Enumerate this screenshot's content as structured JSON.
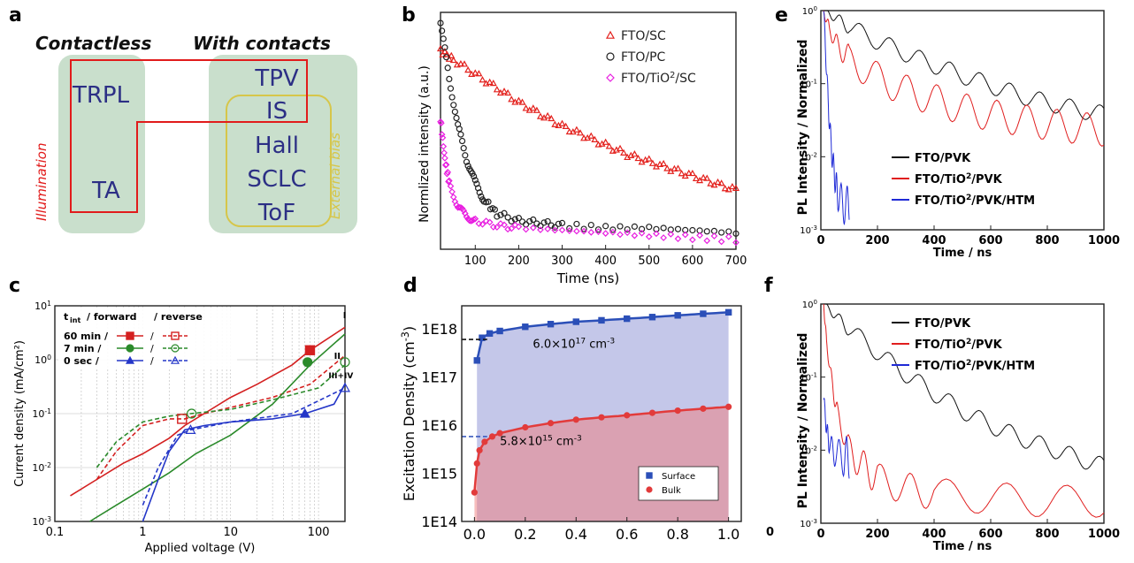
{
  "panels": {
    "a": {
      "label": "a",
      "contactless": "Contactless",
      "with_contacts": "With contacts",
      "illumination": "Illumination",
      "external_bias": "External bias",
      "items_left": [
        "TRPL",
        "TA"
      ],
      "items_right": [
        "TPV",
        "IS",
        "Hall",
        "SCLC",
        "ToF"
      ],
      "colors": {
        "box": "#c9dfcc",
        "text": "#2c2f85",
        "illum": "#e11b1b",
        "bias": "#d6c64a"
      }
    },
    "b": {
      "label": "b"
    },
    "c": {
      "label": "c",
      "legend_header": [
        "t",
        "int",
        "/ forward",
        "/ reverse"
      ],
      "legend_rows": [
        "60 min /",
        "7 min /",
        "0 sec /"
      ],
      "slash": "/",
      "region_labels": [
        "I",
        "II",
        "III+IV"
      ]
    },
    "d": {
      "label": "d",
      "annot_surface": "6.0×10",
      "annot_surface_exp": "17",
      "annot_unit": " cm",
      "annot_unit_exp": "-3",
      "annot_bulk": "5.8×10",
      "annot_bulk_exp": "15"
    },
    "e": {
      "label": "e"
    },
    "f": {
      "label": "f",
      "corner_zero": "0"
    }
  },
  "chart_data": [
    {
      "id": "b",
      "type": "scatter",
      "xlabel": "Time (ns)",
      "ylabel": "Normlized intensity (a.u.)",
      "xlim": [
        20,
        700
      ],
      "ylim": [
        0,
        1
      ],
      "xticks": [
        100,
        200,
        300,
        400,
        500,
        600,
        700
      ],
      "legend_position": "top-right",
      "series": [
        {
          "name": "FTO/SC",
          "legend": [
            "FTO/SC"
          ],
          "color": "#e3201c",
          "marker": "triangle",
          "x": [
            20,
            50,
            100,
            150,
            200,
            250,
            300,
            350,
            400,
            450,
            500,
            550,
            600,
            650,
            700
          ],
          "y": [
            0.84,
            0.8,
            0.74,
            0.68,
            0.62,
            0.57,
            0.52,
            0.48,
            0.44,
            0.4,
            0.37,
            0.34,
            0.31,
            0.28,
            0.25
          ]
        },
        {
          "name": "FTO/PC",
          "legend": [
            "FTO/PC"
          ],
          "color": "#222222",
          "marker": "circle",
          "x": [
            20,
            40,
            60,
            80,
            100,
            120,
            150,
            200,
            250,
            300,
            400,
            500,
            600,
            700
          ],
          "y": [
            0.96,
            0.72,
            0.52,
            0.38,
            0.28,
            0.21,
            0.15,
            0.12,
            0.11,
            0.1,
            0.09,
            0.09,
            0.08,
            0.07
          ]
        },
        {
          "name": "FTO/TiO2/SC",
          "legend": [
            "FTO/TiO",
            "2",
            "/SC"
          ],
          "color": "#e81ee0",
          "marker": "diamond",
          "x": [
            20,
            30,
            40,
            60,
            80,
            100,
            150,
            200,
            300,
            400,
            500,
            600,
            700
          ],
          "y": [
            0.55,
            0.38,
            0.28,
            0.18,
            0.14,
            0.12,
            0.1,
            0.09,
            0.08,
            0.07,
            0.06,
            0.05,
            0.04
          ]
        }
      ]
    },
    {
      "id": "e",
      "type": "line",
      "yscale": "log",
      "xlabel": "Time / ns",
      "ylabel": "PL Intensity / Normalized",
      "xlim": [
        0,
        1000
      ],
      "ylim": [
        0.001,
        1
      ],
      "xticks": [
        0,
        200,
        400,
        600,
        800,
        1000
      ],
      "yticks": [
        1,
        0.1,
        0.01,
        0.001
      ],
      "ytick_labels": [
        [
          "10",
          "0"
        ],
        [
          "10",
          "-1"
        ],
        [
          "10",
          "-2"
        ],
        [
          "10",
          "-3"
        ]
      ],
      "legend_position": "bottom-right",
      "series": [
        {
          "name": "FTO/PVK",
          "legend": [
            "FTO/PVK"
          ],
          "color": "#111111",
          "x": [
            10,
            50,
            100,
            200,
            300,
            400,
            500,
            600,
            700,
            800,
            900,
            1000
          ],
          "y": [
            1,
            0.8,
            0.6,
            0.38,
            0.26,
            0.18,
            0.13,
            0.095,
            0.07,
            0.055,
            0.045,
            0.038
          ]
        },
        {
          "name": "FTO/TiO2/PVK",
          "legend": [
            "FTO/TiO",
            "2",
            "/PVK"
          ],
          "color": "#e01e1e",
          "x": [
            10,
            30,
            60,
            100,
            200,
            300,
            400,
            500,
            600,
            700,
            800,
            900,
            1000
          ],
          "y": [
            1,
            0.55,
            0.33,
            0.22,
            0.12,
            0.08,
            0.06,
            0.045,
            0.037,
            0.032,
            0.028,
            0.025,
            0.023
          ]
        },
        {
          "name": "FTO/TiO2/PVK/HTM",
          "legend": [
            "FTO/TiO",
            "2",
            "/PVK/HTM"
          ],
          "color": "#1f2ad6",
          "x": [
            10,
            20,
            30,
            40,
            50,
            60,
            80,
            100
          ],
          "y": [
            1,
            0.15,
            0.03,
            0.01,
            0.005,
            0.003,
            0.0022,
            0.002
          ]
        }
      ]
    },
    {
      "id": "c",
      "type": "line",
      "xscale": "log",
      "yscale": "log",
      "xlabel": "Applied voltage (V)",
      "ylabel": "Current density (mA/cm²)",
      "xlim": [
        0.1,
        200
      ],
      "ylim": [
        0.001,
        10
      ],
      "xticks": [
        0.1,
        1,
        10,
        100
      ],
      "xtick_labels": [
        "0.1",
        "1",
        "10",
        "100"
      ],
      "yticks": [
        10,
        1,
        0.1,
        0.01,
        0.001
      ],
      "ytick_labels": [
        [
          "10",
          "1"
        ],
        [
          "10",
          "0"
        ],
        [
          "10",
          "-1"
        ],
        [
          "10",
          "-2"
        ],
        [
          "10",
          "-3"
        ]
      ],
      "series": [
        {
          "name": "60 min forward",
          "color": "#d42020",
          "dash": "none",
          "x": [
            0.15,
            0.3,
            0.6,
            1,
            2,
            3,
            5,
            10,
            20,
            50,
            80,
            200
          ],
          "y": [
            0.003,
            0.006,
            0.012,
            0.018,
            0.035,
            0.06,
            0.1,
            0.2,
            0.35,
            0.8,
            1.5,
            4
          ]
        },
        {
          "name": "60 min reverse",
          "color": "#d42020",
          "dash": "5,3",
          "x": [
            0.3,
            0.5,
            1,
            2,
            3,
            5,
            10,
            30,
            80,
            200
          ],
          "y": [
            0.006,
            0.02,
            0.06,
            0.08,
            0.08,
            0.1,
            0.13,
            0.2,
            0.35,
            1.2
          ]
        },
        {
          "name": "7 min forward",
          "color": "#2a8a2a",
          "dash": "none",
          "x": [
            0.25,
            0.5,
            1,
            2,
            4,
            10,
            30,
            80,
            200
          ],
          "y": [
            0.001,
            0.002,
            0.004,
            0.008,
            0.018,
            0.04,
            0.15,
            0.8,
            3
          ]
        },
        {
          "name": "7 min reverse",
          "color": "#2a8a2a",
          "dash": "5,3",
          "x": [
            0.3,
            0.5,
            1,
            2,
            3.5,
            10,
            30,
            100,
            200
          ],
          "y": [
            0.01,
            0.03,
            0.07,
            0.09,
            0.1,
            0.12,
            0.18,
            0.3,
            0.8
          ]
        },
        {
          "name": "0 sec forward",
          "color": "#2436c8",
          "dash": "none",
          "x": [
            1,
            1.5,
            2,
            3,
            5,
            10,
            30,
            70,
            150,
            200
          ],
          "y": [
            0.001,
            0.006,
            0.02,
            0.05,
            0.06,
            0.07,
            0.08,
            0.1,
            0.15,
            0.35
          ]
        },
        {
          "name": "0 sec reverse",
          "color": "#2436c8",
          "dash": "5,3",
          "x": [
            1,
            1.5,
            2.5,
            3.5,
            10,
            50,
            200
          ],
          "y": [
            0.002,
            0.01,
            0.04,
            0.05,
            0.07,
            0.1,
            0.3
          ]
        }
      ],
      "markers": [
        {
          "series": "60 min forward",
          "x": 80,
          "y": 1.5,
          "shape": "square",
          "filled": true
        },
        {
          "series": "60 min reverse",
          "x": 2.8,
          "y": 0.08,
          "shape": "square",
          "filled": false
        },
        {
          "series": "7 min forward",
          "x": 75,
          "y": 0.9,
          "shape": "circle",
          "filled": true
        },
        {
          "series": "7 min reverse",
          "x": 3.6,
          "y": 0.1,
          "shape": "circle",
          "filled": false
        },
        {
          "series": "7 min reverse",
          "x": 200,
          "y": 0.9,
          "shape": "circle",
          "filled": false
        },
        {
          "series": "0 sec forward",
          "x": 70,
          "y": 0.1,
          "shape": "triangle",
          "filled": true
        },
        {
          "series": "0 sec reverse",
          "x": 3.5,
          "y": 0.05,
          "shape": "triangle",
          "filled": false
        },
        {
          "series": "0 sec reverse",
          "x": 200,
          "y": 0.3,
          "shape": "triangle",
          "filled": false
        }
      ]
    },
    {
      "id": "d",
      "type": "area",
      "yscale": "log",
      "xlabel": "",
      "ylabel": "Excitation Density (cm",
      "ylabel_sup": "-3",
      "ylabel_end": ")",
      "xlim": [
        -0.05,
        1.05
      ],
      "ylim": [
        100000000000000.0,
        3e+18
      ],
      "xticks": [
        0.0,
        0.2,
        0.4,
        0.6,
        0.8,
        1.0
      ],
      "xtick_labels": [
        "0.0",
        "0.2",
        "0.4",
        "0.6",
        "0.8",
        "1.0"
      ],
      "yticks": [
        100000000000000.0,
        1000000000000000.0,
        1e+16,
        1e+17,
        1e+18
      ],
      "ytick_labels": [
        "1E14",
        "1E15",
        "1E16",
        "1E17",
        "1E18"
      ],
      "legend_position": "bottom-right",
      "series": [
        {
          "name": "Surface",
          "color": "#2b4fb8",
          "fill": "#7c83cf",
          "x": [
            0.01,
            0.03,
            0.06,
            0.1,
            0.2,
            0.3,
            0.4,
            0.5,
            0.6,
            0.7,
            0.8,
            0.9,
            1.0
          ],
          "y": [
            2.2e+17,
            6.5e+17,
            8e+17,
            9e+17,
            1.1e+18,
            1.25e+18,
            1.4e+18,
            1.5e+18,
            1.62e+18,
            1.75e+18,
            1.9e+18,
            2.05e+18,
            2.2e+18
          ]
        },
        {
          "name": "Bulk",
          "color": "#e23b3b",
          "fill": "#f07c7c",
          "x": [
            0.0,
            0.01,
            0.02,
            0.04,
            0.07,
            0.1,
            0.2,
            0.3,
            0.4,
            0.5,
            0.6,
            0.7,
            0.8,
            0.9,
            1.0
          ],
          "y": [
            400000000000000.0,
            1600000000000000.0,
            3000000000000000.0,
            4500000000000000.0,
            5800000000000000.0,
            6800000000000000.0,
            9000000000000000.0,
            1.1e+16,
            1.3e+16,
            1.45e+16,
            1.6e+16,
            1.8e+16,
            2e+16,
            2.2e+16,
            2.4e+16
          ]
        }
      ],
      "reference_lines": [
        {
          "y": 6e+17
        },
        {
          "y": 5800000000000000.0
        }
      ]
    },
    {
      "id": "f",
      "type": "line",
      "yscale": "log",
      "xlabel": "Time / ns",
      "ylabel": "PL Intensity / Normalized",
      "xlim": [
        0,
        1000
      ],
      "ylim": [
        0.001,
        1
      ],
      "xticks": [
        0,
        200,
        400,
        600,
        800,
        1000
      ],
      "yticks": [
        1,
        0.1,
        0.01,
        0.001
      ],
      "ytick_labels": [
        [
          "10",
          "0"
        ],
        [
          "10",
          "-1"
        ],
        [
          "10",
          "-2"
        ],
        [
          "10",
          "-3"
        ]
      ],
      "legend_position": "top-right",
      "series": [
        {
          "name": "FTO/PVK",
          "legend": [
            "FTO/PVK"
          ],
          "color": "#111111",
          "x": [
            10,
            50,
            100,
            200,
            300,
            400,
            500,
            600,
            700,
            800,
            900,
            1000
          ],
          "y": [
            1,
            0.7,
            0.45,
            0.22,
            0.11,
            0.06,
            0.035,
            0.022,
            0.015,
            0.011,
            0.008,
            0.006
          ]
        },
        {
          "name": "FTO/TiO2/PVK",
          "legend": [
            "FTO/TiO",
            "2",
            "/PVK"
          ],
          "color": "#e01e1e",
          "x": [
            10,
            20,
            40,
            60,
            100,
            150,
            200,
            300,
            400,
            600,
            800,
            1000
          ],
          "y": [
            1,
            0.3,
            0.08,
            0.03,
            0.01,
            0.006,
            0.004,
            0.003,
            0.0025,
            0.0022,
            0.002,
            0.002
          ]
        },
        {
          "name": "FTO/TiO2/PVK/HTM",
          "legend": [
            "FTO/TiO",
            "2",
            "/PVK/HTM"
          ],
          "color": "#1f2ad6",
          "x": [
            10,
            20,
            30,
            50,
            80,
            100
          ],
          "y": [
            0.05,
            0.02,
            0.012,
            0.009,
            0.008,
            0.008
          ]
        }
      ]
    }
  ]
}
